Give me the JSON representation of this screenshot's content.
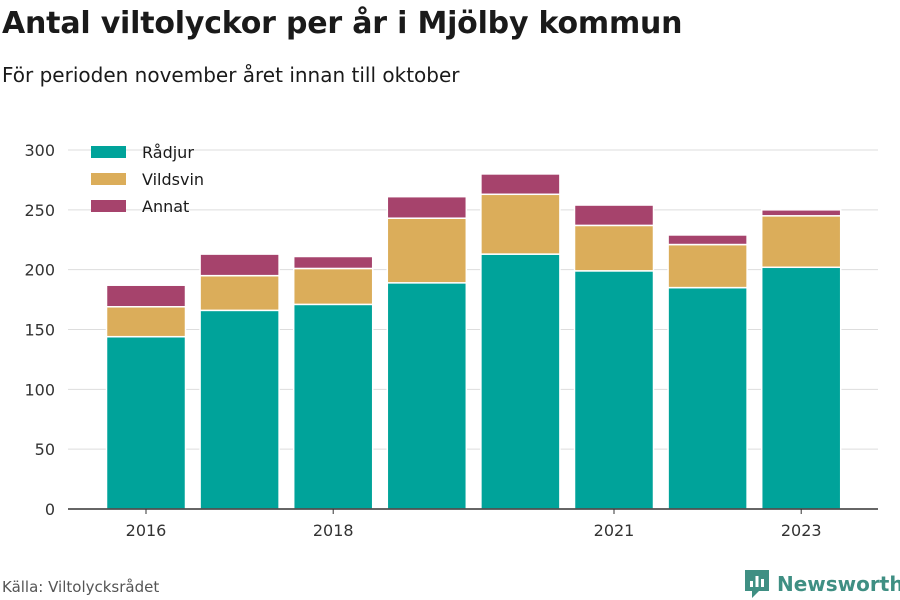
{
  "title": "Antal viltolyckor per år i Mjölby kommun",
  "subtitle": "För perioden november året innan till oktober",
  "source": "Källa: Viltolycksrådet",
  "brand": "Newsworthy",
  "colors": {
    "radjur": "#00a39a",
    "vildsvin": "#dbad5a",
    "annat": "#a6436c",
    "grid": "#dddddd",
    "axis": "#333333"
  },
  "chart_data": {
    "type": "bar",
    "stacked": true,
    "categories": [
      "2016",
      "2017",
      "2018",
      "2019",
      "2020",
      "2021",
      "2022",
      "2023"
    ],
    "tick_labels": [
      "2016",
      "",
      "2018",
      "",
      "",
      "2021",
      "",
      "2023"
    ],
    "series": [
      {
        "name": "Rådjur",
        "values": [
          144,
          166,
          171,
          189,
          213,
          199,
          185,
          202
        ]
      },
      {
        "name": "Vildsvin",
        "values": [
          25,
          29,
          30,
          54,
          50,
          38,
          36,
          43
        ]
      },
      {
        "name": "Annat",
        "values": [
          18,
          18,
          10,
          18,
          17,
          17,
          8,
          5
        ]
      }
    ],
    "ylim": [
      0,
      300
    ],
    "yticks": [
      0,
      50,
      100,
      150,
      200,
      250,
      300
    ],
    "grid": true,
    "legend_position": "top-left"
  }
}
